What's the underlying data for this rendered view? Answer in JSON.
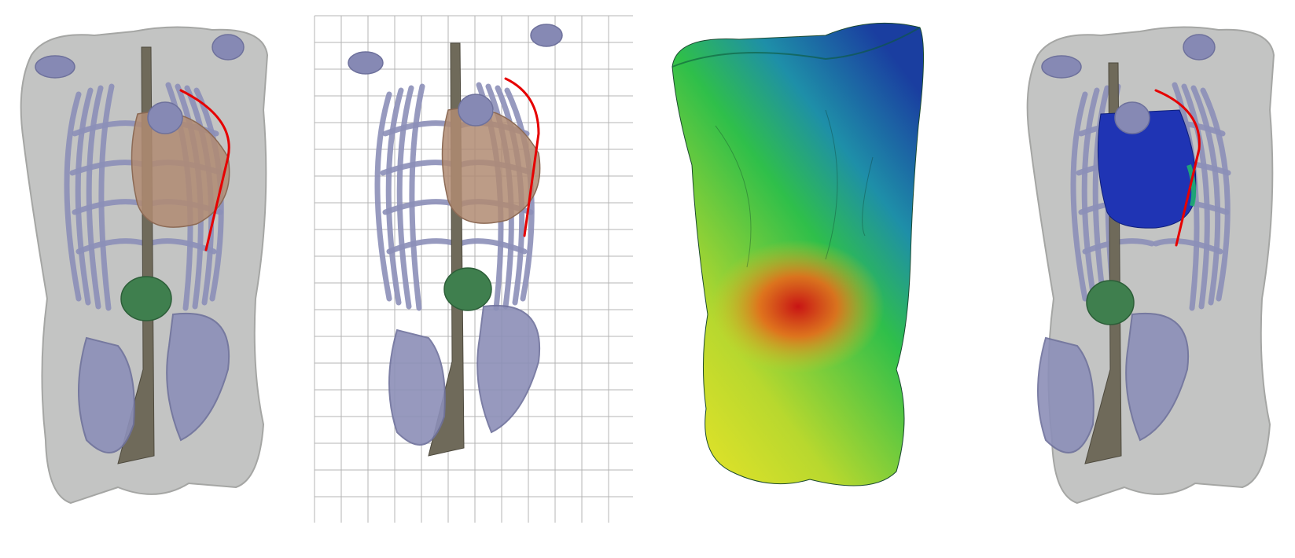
{
  "colors": {
    "skin": "#b9bab8",
    "skin_edge": "#a5a6a4",
    "bone": "#8c8fb8",
    "bone_dark": "#6e719c",
    "spine": "#6f6a5a",
    "heart": "#b08b72",
    "organ_blue": "#8689b4",
    "green_organ": "#3f7f4e",
    "wire": "#e60000",
    "grid": "#b4b4b4",
    "field_blue": "#1a3ea0",
    "field_green": "#2fbf4a",
    "field_yellow": "#d8e02a",
    "field_red": "#c81414",
    "heart_blue": "#1f34b4"
  },
  "panels": [
    {
      "name": "segmented-anatomy",
      "grid": false,
      "field": false
    },
    {
      "name": "anatomy-with-mesh-grid",
      "grid": true,
      "field": false
    },
    {
      "name": "torso-potential-field",
      "grid": false,
      "field": true
    },
    {
      "name": "anatomy-heart-potential",
      "grid": false,
      "field": false
    }
  ]
}
